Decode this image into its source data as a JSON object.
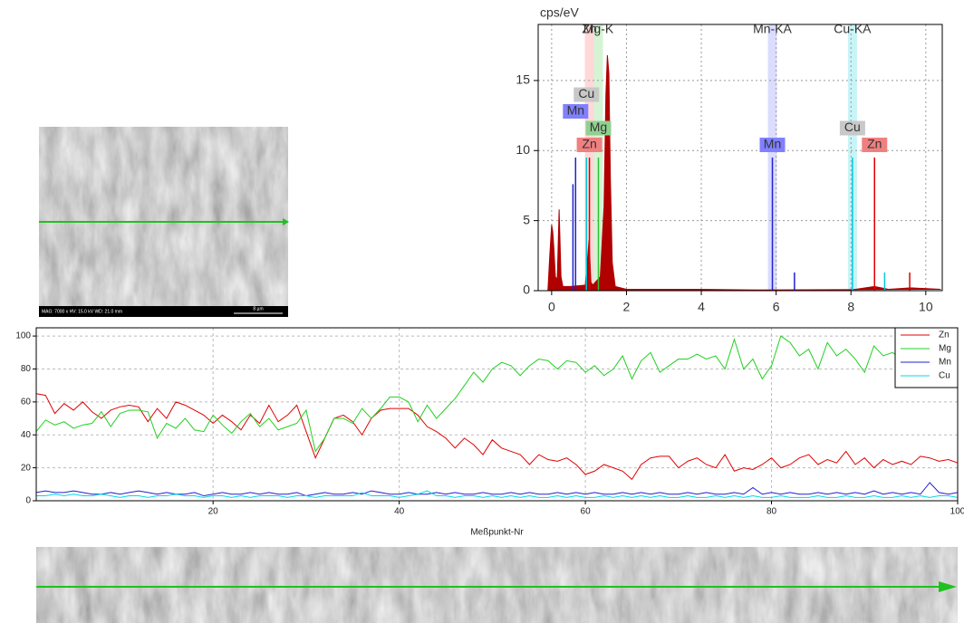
{
  "images": {
    "sem_info": "MAG: 7000 x   HV: 15.0 kV   WD: 21.0 mm",
    "scale": "8 µm"
  },
  "chart_data": [
    {
      "type": "spectrum",
      "ylabel": "cps/eV",
      "xlim": [
        -0.36,
        10.44
      ],
      "ylim": [
        0,
        19
      ],
      "xticks": [
        0,
        2,
        4,
        6,
        8,
        10
      ],
      "yticks": [
        0,
        5,
        10,
        15
      ],
      "grid": true,
      "spectrum": {
        "color": "#b00000",
        "x": [
          -0.1,
          -0.05,
          0,
          0.03,
          0.06,
          0.1,
          0.15,
          0.2,
          0.25,
          0.3,
          0.5,
          0.9,
          1.0,
          1.05,
          1.1,
          1.3,
          1.4,
          1.45,
          1.49,
          1.53,
          1.57,
          1.62,
          1.7,
          2.0,
          4.0,
          5.5,
          6.0,
          8.0,
          8.63,
          9.0,
          9.6,
          10.4
        ],
        "values": [
          0,
          2.5,
          4.7,
          4.2,
          3.0,
          1.0,
          0.8,
          5.8,
          1.0,
          0.3,
          0.3,
          0.4,
          3.6,
          0.6,
          0.4,
          1.0,
          6,
          14,
          16.8,
          15.5,
          8,
          2,
          0.3,
          0.1,
          0.1,
          0.05,
          0.05,
          0.05,
          0.3,
          0.1,
          0.2,
          0.1
        ]
      },
      "series": [
        {
          "name": "Zn",
          "color": "#e00000",
          "label_color": "#f08080",
          "x": [
            1.01,
            8.63,
            9.57
          ],
          "values": [
            9.5,
            9.5,
            1.3
          ]
        },
        {
          "name": "Mg",
          "color": "#30c030",
          "label_color": "#90d090",
          "x": [
            1.25
          ],
          "values": [
            9.5
          ]
        },
        {
          "name": "Mn",
          "color": "#2020d0",
          "label_color": "#8080ff",
          "x": [
            0.57,
            0.64,
            5.9,
            6.49
          ],
          "values": [
            7.6,
            9.5,
            9.5,
            1.3
          ]
        },
        {
          "name": "Cu",
          "color": "#00c8d8",
          "label_color": "#c8c8c8",
          "x": [
            0.93,
            8.04,
            8.9
          ],
          "values": [
            9.5,
            9.5,
            1.3
          ]
        }
      ],
      "markers": [
        {
          "label": "Zn",
          "x": 1.01,
          "color": "#ffd8d8"
        },
        {
          "label": "Mg-K",
          "x": 1.25,
          "color": "#d4f4d4"
        },
        {
          "label": "Mn-KA",
          "x": 5.9,
          "color": "#dcdcff"
        },
        {
          "label": "Cu-KA",
          "x": 8.04,
          "color": "#c8f4f8"
        }
      ]
    },
    {
      "type": "line",
      "xlabel": "Meßpunkt-Nr",
      "xlim": [
        1,
        100
      ],
      "ylim": [
        0,
        105
      ],
      "xticks": [
        20,
        40,
        60,
        80,
        100
      ],
      "yticks": [
        0,
        20,
        40,
        60,
        80,
        100
      ],
      "grid": true,
      "legend": "top-right",
      "x": [
        1,
        2,
        3,
        4,
        5,
        6,
        7,
        8,
        9,
        10,
        11,
        12,
        13,
        14,
        15,
        16,
        17,
        18,
        19,
        20,
        21,
        22,
        23,
        24,
        25,
        26,
        27,
        28,
        29,
        30,
        31,
        32,
        33,
        34,
        35,
        36,
        37,
        38,
        39,
        40,
        41,
        42,
        43,
        44,
        45,
        46,
        47,
        48,
        49,
        50,
        51,
        52,
        53,
        54,
        55,
        56,
        57,
        58,
        59,
        60,
        61,
        62,
        63,
        64,
        65,
        66,
        67,
        68,
        69,
        70,
        71,
        72,
        73,
        74,
        75,
        76,
        77,
        78,
        79,
        80,
        81,
        82,
        83,
        84,
        85,
        86,
        87,
        88,
        89,
        90,
        91,
        92,
        93,
        94,
        95,
        96,
        97,
        98,
        99,
        100
      ],
      "series": [
        {
          "name": "Zn",
          "color": "#e00000",
          "values": [
            65,
            64,
            53,
            59,
            55,
            60,
            54,
            50,
            55,
            57,
            58,
            57,
            48,
            56,
            50,
            60,
            58,
            55,
            52,
            47,
            52,
            48,
            43,
            52,
            47,
            58,
            48,
            52,
            58,
            42,
            26,
            38,
            50,
            52,
            48,
            40,
            50,
            55,
            56,
            56,
            56,
            52,
            45,
            42,
            38,
            32,
            38,
            34,
            28,
            37,
            32,
            30,
            28,
            22,
            28,
            25,
            24,
            26,
            22,
            16,
            18,
            22,
            20,
            18,
            13,
            22,
            26,
            27,
            27,
            20,
            24,
            26,
            22,
            20,
            28,
            18,
            20,
            19,
            22,
            26,
            20,
            22,
            26,
            28,
            22,
            25,
            23,
            30,
            22,
            26,
            20,
            25,
            22,
            24,
            22,
            27,
            26,
            24,
            25,
            23
          ]
        },
        {
          "name": "Mg",
          "color": "#20d020",
          "values": [
            42,
            49,
            46,
            48,
            44,
            46,
            47,
            54,
            45,
            53,
            55,
            55,
            54,
            38,
            47,
            44,
            50,
            43,
            42,
            52,
            46,
            41,
            48,
            53,
            45,
            50,
            43,
            45,
            47,
            55,
            30,
            38,
            50,
            50,
            47,
            56,
            50,
            56,
            63,
            63,
            60,
            48,
            58,
            50,
            56,
            62,
            70,
            78,
            72,
            80,
            84,
            82,
            76,
            82,
            86,
            85,
            80,
            85,
            84,
            78,
            82,
            76,
            80,
            88,
            74,
            85,
            90,
            78,
            82,
            86,
            86,
            89,
            86,
            88,
            80,
            98,
            80,
            86,
            74,
            82,
            100,
            96,
            88,
            92,
            80,
            96,
            88,
            92,
            86,
            78,
            94,
            88,
            90,
            86,
            88,
            94,
            90,
            92,
            88,
            90
          ]
        },
        {
          "name": "Mn",
          "color": "#2020d0",
          "values": [
            5,
            6,
            5,
            5,
            6,
            5,
            4,
            4,
            5,
            4,
            5,
            6,
            5,
            4,
            5,
            4,
            4,
            5,
            3,
            4,
            5,
            4,
            4,
            5,
            4,
            5,
            4,
            4,
            5,
            3,
            4,
            5,
            4,
            4,
            5,
            4,
            6,
            5,
            4,
            4,
            5,
            4,
            4,
            5,
            4,
            5,
            4,
            4,
            5,
            4,
            4,
            5,
            4,
            5,
            4,
            4,
            5,
            4,
            5,
            4,
            5,
            4,
            4,
            5,
            4,
            5,
            4,
            5,
            4,
            4,
            5,
            4,
            5,
            4,
            4,
            5,
            4,
            8,
            4,
            5,
            4,
            5,
            4,
            4,
            5,
            4,
            5,
            4,
            5,
            4,
            6,
            4,
            5,
            4,
            5,
            4,
            11,
            5,
            4,
            5
          ]
        },
        {
          "name": "Cu",
          "color": "#00d8e8",
          "values": [
            3,
            3,
            4,
            3,
            4,
            3,
            3,
            4,
            3,
            2,
            3,
            3,
            2,
            3,
            3,
            4,
            3,
            3,
            2,
            3,
            3,
            2,
            3,
            2,
            3,
            3,
            3,
            2,
            3,
            3,
            2,
            3,
            3,
            3,
            3,
            5,
            3,
            3,
            3,
            2,
            3,
            4,
            6,
            3,
            3,
            2,
            3,
            3,
            2,
            3,
            2,
            3,
            2,
            3,
            2,
            2,
            3,
            2,
            3,
            2,
            2,
            3,
            2,
            3,
            2,
            3,
            2,
            3,
            2,
            2,
            3,
            2,
            2,
            3,
            2,
            3,
            2,
            3,
            2,
            2,
            3,
            2,
            2,
            2,
            3,
            2,
            2,
            3,
            2,
            2,
            3,
            2,
            2,
            3,
            2,
            3,
            2,
            3,
            3,
            2
          ]
        }
      ]
    }
  ]
}
